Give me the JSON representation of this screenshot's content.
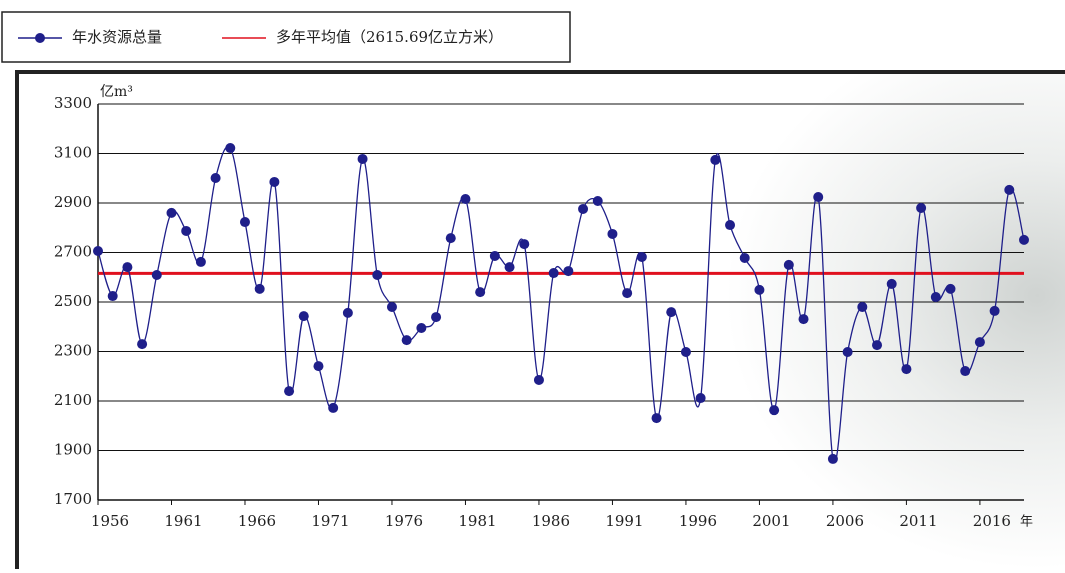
{
  "chart_data": {
    "type": "line",
    "legend_box": true,
    "y_unit": "亿m³",
    "x_unit": "年",
    "x": [
      1956,
      1957,
      1958,
      1959,
      1960,
      1961,
      1962,
      1963,
      1964,
      1965,
      1966,
      1967,
      1968,
      1969,
      1970,
      1971,
      1972,
      1973,
      1974,
      1975,
      1976,
      1977,
      1978,
      1979,
      1980,
      1981,
      1982,
      1983,
      1984,
      1985,
      1986,
      1987,
      1988,
      1989,
      1990,
      1991,
      1992,
      1993,
      1994,
      1995,
      1996,
      1997,
      1998,
      1999,
      2000,
      2001,
      2002,
      2003,
      2004,
      2005,
      2006,
      2007,
      2008,
      2009,
      2010,
      2011,
      2012,
      2013,
      2014,
      2015,
      2016,
      2017,
      2018,
      2019
    ],
    "series": [
      {
        "name": "年水资源总量",
        "color": "#1f1f8a",
        "values": [
          2706,
          2524,
          2641,
          2330,
          2609,
          2860,
          2787,
          2662,
          3001,
          3122,
          2823,
          2553,
          2985,
          2140,
          2443,
          2241,
          2072,
          2456,
          3078,
          2609,
          2480,
          2346,
          2395,
          2439,
          2758,
          2916,
          2540,
          2686,
          2641,
          2734,
          2185,
          2617,
          2625,
          2876,
          2908,
          2775,
          2536,
          2682,
          2031,
          2459,
          2298,
          2112,
          3074,
          2811,
          2678,
          2549,
          2063,
          2650,
          2431,
          2924,
          1866,
          2298,
          2480,
          2326,
          2573,
          2229,
          2880,
          2520,
          2553,
          2221,
          2338,
          2464,
          2953,
          2751
        ]
      }
    ],
    "reference_line": {
      "name": "多年平均值（2615.69亿立方米）",
      "value": 2615.69,
      "color": "#e0101e"
    },
    "xlim": [
      1956,
      2019
    ],
    "xticks": [
      1956,
      1961,
      1966,
      1971,
      1976,
      1981,
      1986,
      1991,
      1996,
      2001,
      2006,
      2011,
      2016
    ],
    "ylim": [
      1700,
      3300
    ],
    "yticks": [
      1700,
      1900,
      2100,
      2300,
      2500,
      2700,
      2900,
      3100,
      3300
    ],
    "grid": true
  }
}
